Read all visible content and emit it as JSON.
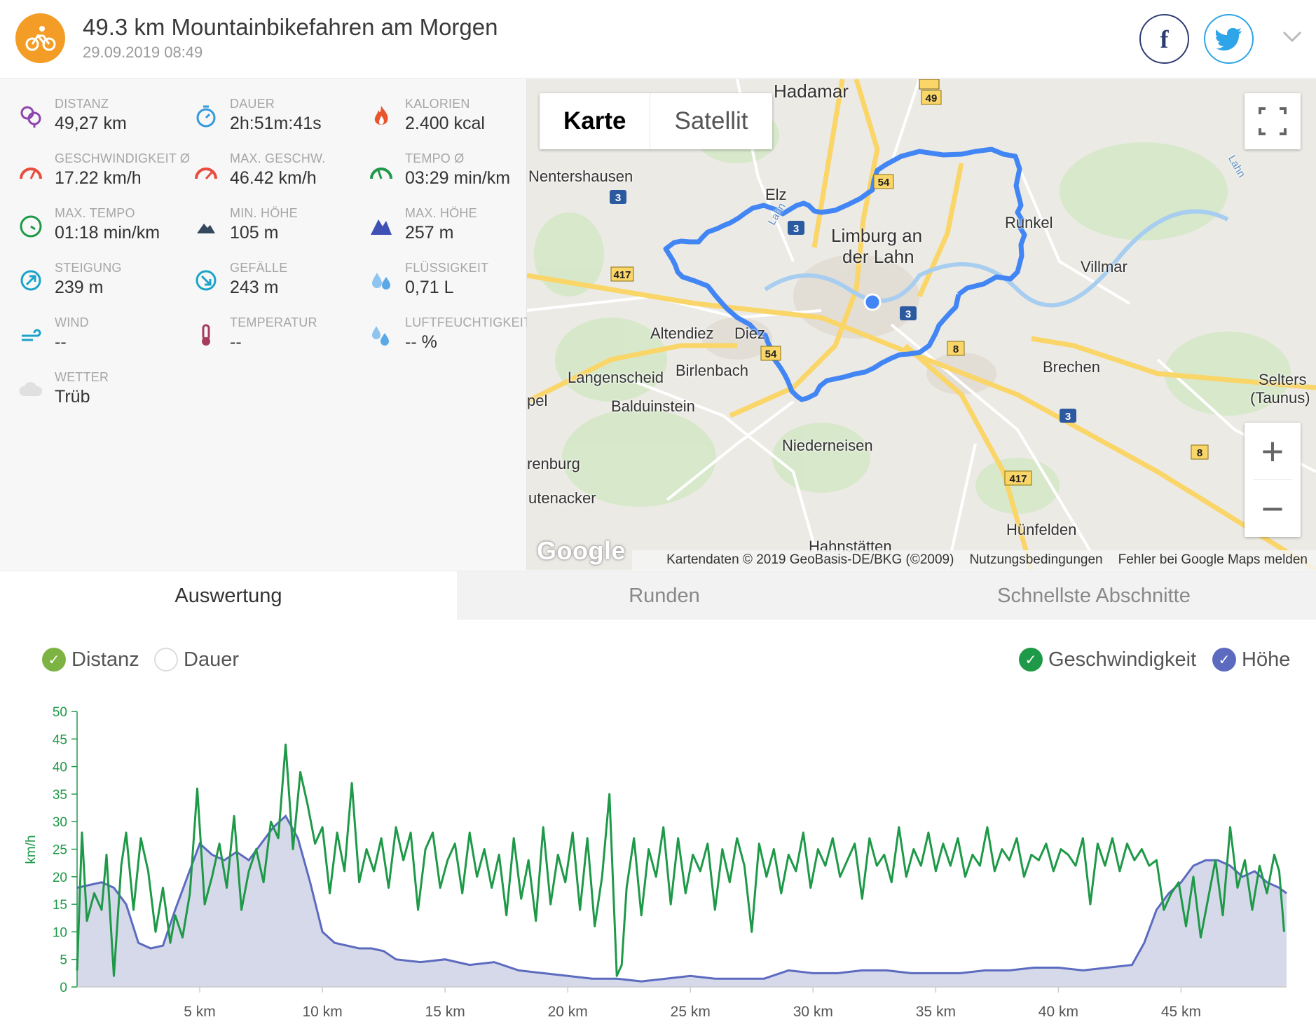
{
  "header": {
    "title": "49.3 km Mountainbikefahren am Morgen",
    "date": "29.09.2019 08:49",
    "sport_icon": "bike-icon",
    "accent": "#f39c26",
    "social": [
      "facebook-icon",
      "twitter-icon"
    ]
  },
  "stats": [
    {
      "label": "DISTANZ",
      "value": "49,27 km",
      "icon": "distance-pin-icon"
    },
    {
      "label": "DAUER",
      "value": "2h:51m:41s",
      "icon": "stopwatch-icon"
    },
    {
      "label": "KALORIEN",
      "value": "2.400 kcal",
      "icon": "flame-icon"
    },
    {
      "label": "GESCHWINDIGKEIT Ø",
      "value": "17.22 km/h",
      "icon": "speedometer-icon"
    },
    {
      "label": "MAX. GESCHW.",
      "value": "46.42 km/h",
      "icon": "speedometer-max-icon"
    },
    {
      "label": "TEMPO Ø",
      "value": "03:29 min/km",
      "icon": "pace-icon"
    },
    {
      "label": "MAX. TEMPO",
      "value": "01:18 min/km",
      "icon": "pace-max-icon"
    },
    {
      "label": "MIN. HÖHE",
      "value": "105 m",
      "icon": "mountain-min-icon"
    },
    {
      "label": "MAX. HÖHE",
      "value": "257 m",
      "icon": "mountain-max-icon"
    },
    {
      "label": "STEIGUNG",
      "value": "239 m",
      "icon": "ascent-icon"
    },
    {
      "label": "GEFÄLLE",
      "value": "243 m",
      "icon": "descent-icon"
    },
    {
      "label": "FLÜSSIGKEIT",
      "value": "0,71 L",
      "icon": "drops-icon"
    },
    {
      "label": "WIND",
      "value": "--",
      "icon": "wind-icon"
    },
    {
      "label": "TEMPERATUR",
      "value": "--",
      "icon": "thermometer-icon"
    },
    {
      "label": "LUFTFEUCHTIGKEIT",
      "value": "-- %",
      "icon": "humidity-icon"
    },
    {
      "label": "WETTER",
      "value": "Trüb",
      "icon": "cloud-icon"
    }
  ],
  "map": {
    "type_buttons": [
      "Karte",
      "Satellit"
    ],
    "logo": "Google",
    "footer": [
      "Kartendaten © 2019 GeoBasis-DE/BKG (©2009)",
      "Nutzungsbedingungen",
      "Fehler bei Google Maps melden"
    ],
    "places": [
      "Hadamar",
      "Nentershausen",
      "Elz",
      "Limburg an",
      "der Lahn",
      "Runkel",
      "Villmar",
      "Altendiez",
      "Diez",
      "Langenscheid",
      "Birlenbach",
      "Brechen",
      "Selters",
      "(Taunus)",
      "Balduinstein",
      "Niederneisen",
      "Hünfelden",
      "Hahnstätten",
      "utenacker",
      "renburg",
      "pel",
      "Lahn",
      "Lahn"
    ],
    "road_shields": [
      "49",
      "54",
      "3",
      "3",
      "3",
      "417",
      "8",
      "54",
      "3",
      "8",
      "417",
      "54"
    ],
    "route_color": "#4285f4"
  },
  "tabs": [
    "Auswertung",
    "Runden",
    "Schnellste Abschnitte"
  ],
  "toggles": {
    "left": [
      {
        "label": "Distanz",
        "checked": true,
        "color": "#7cb342"
      },
      {
        "label": "Dauer",
        "checked": false
      }
    ],
    "right": [
      {
        "label": "Geschwindigkeit",
        "checked": true,
        "color": "#1e9948"
      },
      {
        "label": "Höhe",
        "checked": true,
        "color": "#5c6bc0"
      }
    ]
  },
  "chart_data": {
    "type": "line",
    "ylabel": "km/h",
    "ylim": [
      0,
      50
    ],
    "yticks": [
      0,
      5,
      10,
      15,
      20,
      25,
      30,
      35,
      40,
      45,
      50
    ],
    "xticks": [
      "5 km",
      "10 km",
      "15 km",
      "20 km",
      "25 km",
      "30 km",
      "35 km",
      "40 km",
      "45 km"
    ],
    "xlim": [
      0,
      49.3
    ],
    "grid": false,
    "series": [
      {
        "name": "Geschwindigkeit",
        "color": "#1e9948",
        "x": [
          0,
          0.2,
          0.4,
          0.7,
          1.0,
          1.2,
          1.5,
          1.8,
          2.0,
          2.3,
          2.6,
          2.9,
          3.2,
          3.5,
          3.8,
          4.0,
          4.3,
          4.6,
          4.9,
          5.2,
          5.5,
          5.8,
          6.1,
          6.4,
          6.7,
          7.0,
          7.3,
          7.6,
          7.9,
          8.2,
          8.5,
          8.8,
          9.1,
          9.4,
          9.7,
          10.0,
          10.3,
          10.6,
          10.9,
          11.2,
          11.5,
          11.8,
          12.1,
          12.4,
          12.7,
          13.0,
          13.3,
          13.6,
          13.9,
          14.2,
          14.5,
          14.8,
          15.1,
          15.4,
          15.7,
          16.0,
          16.3,
          16.6,
          16.9,
          17.2,
          17.5,
          17.8,
          18.1,
          18.4,
          18.7,
          19.0,
          19.3,
          19.6,
          19.9,
          20.2,
          20.5,
          20.8,
          21.1,
          21.4,
          21.7,
          22.0,
          22.2,
          22.4,
          22.7,
          23.0,
          23.3,
          23.6,
          23.9,
          24.2,
          24.5,
          24.8,
          25.1,
          25.4,
          25.7,
          26.0,
          26.3,
          26.6,
          26.9,
          27.2,
          27.5,
          27.8,
          28.1,
          28.4,
          28.7,
          29.0,
          29.3,
          29.6,
          29.9,
          30.2,
          30.5,
          30.8,
          31.1,
          31.4,
          31.7,
          32.0,
          32.3,
          32.6,
          32.9,
          33.2,
          33.5,
          33.8,
          34.1,
          34.4,
          34.7,
          35.0,
          35.3,
          35.6,
          35.9,
          36.2,
          36.5,
          36.8,
          37.1,
          37.4,
          37.7,
          38.0,
          38.3,
          38.6,
          38.9,
          39.2,
          39.5,
          39.8,
          40.1,
          40.4,
          40.7,
          41.0,
          41.3,
          41.6,
          41.9,
          42.2,
          42.5,
          42.8,
          43.1,
          43.4,
          43.7,
          44.0,
          44.3,
          44.6,
          44.9,
          45.2,
          45.5,
          45.8,
          46.1,
          46.4,
          46.7,
          47.0,
          47.3,
          47.6,
          47.9,
          48.2,
          48.5,
          48.8,
          49.0,
          49.2
        ],
        "values": [
          3,
          28,
          12,
          17,
          14,
          24,
          2,
          22,
          28,
          14,
          27,
          21,
          10,
          18,
          8,
          13,
          9,
          17,
          36,
          15,
          20,
          26,
          18,
          31,
          14,
          21,
          25,
          19,
          30,
          27,
          44,
          25,
          39,
          33,
          26,
          29,
          17,
          28,
          21,
          37,
          19,
          25,
          21,
          27,
          18,
          29,
          23,
          28,
          14,
          25,
          28,
          18,
          23,
          26,
          17,
          28,
          20,
          25,
          18,
          24,
          13,
          27,
          16,
          23,
          12,
          29,
          15,
          24,
          19,
          28,
          14,
          27,
          11,
          20,
          35,
          2,
          4,
          18,
          27,
          13,
          25,
          20,
          29,
          15,
          27,
          17,
          24,
          21,
          26,
          14,
          25,
          19,
          27,
          22,
          10,
          26,
          20,
          25,
          17,
          24,
          21,
          28,
          18,
          25,
          22,
          27,
          20,
          23,
          26,
          16,
          27,
          22,
          24,
          19,
          29,
          20,
          25,
          22,
          28,
          21,
          26,
          22,
          27,
          20,
          24,
          22,
          29,
          21,
          25,
          23,
          27,
          20,
          24,
          23,
          26,
          21,
          25,
          24,
          22,
          27,
          15,
          26,
          22,
          27,
          21,
          26,
          23,
          25,
          22,
          23,
          14,
          17,
          19,
          11,
          20,
          9,
          16,
          23,
          13,
          29,
          18,
          23,
          14,
          22,
          17,
          24,
          21,
          10
        ],
        "note": "approximate trace read from chart"
      },
      {
        "name": "Höhe",
        "color": "#5c6bc0",
        "fill": "#d6d9ea",
        "x": [
          0,
          0.5,
          1.0,
          1.5,
          2.0,
          2.5,
          3.0,
          3.5,
          4.0,
          4.5,
          5.0,
          5.5,
          6.0,
          6.5,
          7.0,
          7.5,
          8.0,
          8.5,
          9.0,
          9.5,
          10.0,
          10.5,
          11.0,
          11.5,
          12.0,
          12.5,
          13.0,
          14.0,
          15.0,
          16.0,
          17.0,
          18.0,
          19.0,
          20.0,
          21.0,
          22.0,
          23.0,
          24.0,
          25.0,
          26.0,
          27.0,
          28.0,
          29.0,
          30.0,
          31.0,
          32.0,
          33.0,
          34.0,
          35.0,
          36.0,
          37.0,
          38.0,
          39.0,
          40.0,
          41.0,
          42.0,
          43.0,
          43.5,
          44.0,
          44.5,
          45.0,
          45.5,
          46.0,
          46.5,
          47.0,
          47.5,
          48.0,
          48.5,
          49.0,
          49.3
        ],
        "values": [
          18,
          18.5,
          19,
          18,
          15,
          8,
          7,
          7.5,
          14,
          20,
          26,
          24,
          23,
          24.5,
          23,
          26,
          29,
          31,
          27,
          19,
          10,
          8,
          7.5,
          7,
          7,
          6.5,
          5,
          4.5,
          5,
          4,
          4.5,
          3,
          2.5,
          2,
          1.5,
          1.5,
          1,
          1.5,
          2,
          1.5,
          1.5,
          1.5,
          3,
          2.5,
          2.5,
          3,
          3,
          2.5,
          2.5,
          2.5,
          3,
          3,
          3.5,
          3.5,
          3,
          3.5,
          4,
          8,
          14,
          17,
          19,
          22,
          23,
          23,
          22,
          20,
          21,
          19,
          18,
          17
        ],
        "note": "unitless elevation profile scaled to chart"
      }
    ]
  }
}
